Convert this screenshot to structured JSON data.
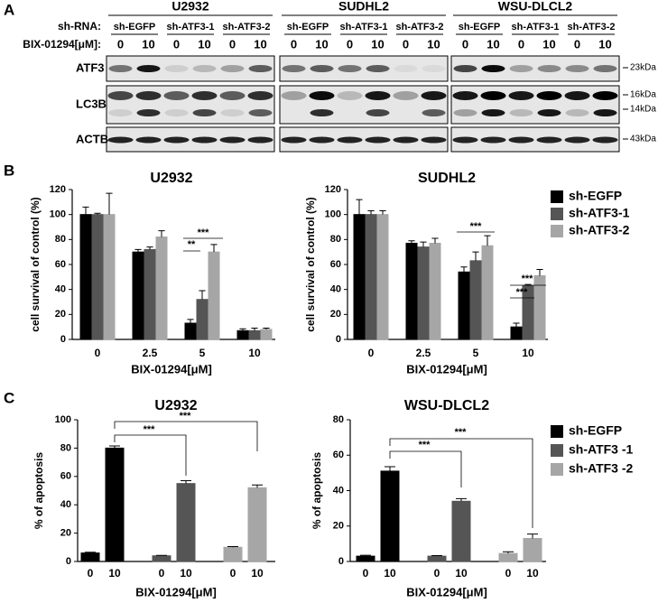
{
  "panel_labels": [
    "A",
    "B",
    "C"
  ],
  "blot": {
    "shrna_label": "sh-RNA:",
    "dose_label": "BIX-01294[μM]:",
    "cell_lines": [
      {
        "name": "U2932",
        "sh_rna": [
          "sh-EGFP",
          "sh-ATF3-1",
          "sh-ATF3-2"
        ],
        "doses": [
          "0",
          "10",
          "0",
          "10",
          "0",
          "10"
        ]
      },
      {
        "name": "SUDHL2",
        "sh_rna": [
          "sh-EGFP",
          "sh-ATF3-1",
          "sh-ATF3-2"
        ],
        "doses": [
          "0",
          "10",
          "0",
          "10",
          "0",
          "10"
        ]
      },
      {
        "name": "WSU-DLCL2",
        "sh_rna": [
          "sh-EGFP",
          "sh-ATF3-1",
          "sh-ATF3-2"
        ],
        "doses": [
          "0",
          "10",
          "0",
          "10",
          "0",
          "10"
        ]
      }
    ],
    "rows": [
      "ATF3",
      "LC3B",
      "ACTB"
    ],
    "markers": [
      "23kDa",
      "16kDa",
      "14kDa",
      "43kDa"
    ]
  },
  "chart_data": [
    {
      "type": "bar",
      "title": "U2932",
      "x_label": "BIX-01294[μM]",
      "y_label": "cell survival of control (%)",
      "categories": [
        "0",
        "2.5",
        "5",
        "10"
      ],
      "series": [
        {
          "color": "#000000",
          "values": [
            100,
            70,
            13,
            7
          ],
          "errors": [
            6,
            2,
            3,
            1.5
          ]
        },
        {
          "color": "#555555",
          "values": [
            100,
            72,
            32,
            7
          ],
          "errors": [
            1,
            2,
            7,
            2
          ]
        },
        {
          "color": "#a6a6a6",
          "values": [
            100,
            82,
            70,
            8
          ],
          "errors": [
            17,
            5,
            6,
            1
          ]
        }
      ],
      "ylim": [
        0,
        120
      ],
      "yticks": [
        0,
        20,
        40,
        60,
        80,
        100,
        120
      ],
      "annotations": [
        "***",
        "**"
      ]
    },
    {
      "type": "bar",
      "title": "SUDHL2",
      "x_label": "BIX-01294[μM]",
      "y_label": "cell survival of control (%)",
      "categories": [
        "0",
        "2.5",
        "5",
        "10"
      ],
      "series": [
        {
          "name": "sh-EGFP",
          "color": "#000000",
          "values": [
            100,
            77,
            54,
            10
          ],
          "errors": [
            12,
            2,
            4,
            3
          ]
        },
        {
          "name": "sh-ATF3-1",
          "color": "#555555",
          "values": [
            100,
            74,
            63,
            43
          ],
          "errors": [
            3,
            4,
            7,
            1
          ]
        },
        {
          "name": "sh-ATF3-2",
          "color": "#a6a6a6",
          "values": [
            100,
            77,
            75,
            51
          ],
          "errors": [
            3,
            4,
            8,
            5
          ]
        }
      ],
      "ylim": [
        0,
        120
      ],
      "yticks": [
        0,
        20,
        40,
        60,
        80,
        100,
        120
      ],
      "annotations": [
        "***",
        "***",
        "***"
      ]
    },
    {
      "type": "bar",
      "title": "U2932",
      "x_label": "BIX-01294[μM]",
      "y_label": "% of apoptosis",
      "categories": [
        "0",
        "10"
      ],
      "series": [
        {
          "color": "#000000",
          "values": [
            6,
            80
          ],
          "errors": [
            0.5,
            1.5
          ]
        },
        {
          "color": "#555555",
          "values": [
            4,
            55
          ],
          "errors": [
            0.3,
            2
          ]
        },
        {
          "color": "#a6a6a6",
          "values": [
            10,
            52
          ],
          "errors": [
            0.5,
            2
          ]
        }
      ],
      "ylim": [
        0,
        100
      ],
      "yticks": [
        0,
        20,
        40,
        60,
        80,
        100
      ],
      "annotations": [
        "***",
        "***"
      ]
    },
    {
      "type": "bar",
      "title": "WSU-DLCL2",
      "x_label": "BIX-01294[μM]",
      "y_label": "% of apoptosis",
      "categories": [
        "0",
        "10"
      ],
      "series": [
        {
          "name": "sh-EGFP",
          "color": "#000000",
          "values": [
            3,
            51
          ],
          "errors": [
            0.5,
            2.5
          ]
        },
        {
          "name": "sh-ATF3 -1",
          "color": "#555555",
          "values": [
            3,
            34
          ],
          "errors": [
            0.3,
            1.5
          ]
        },
        {
          "name": "sh-ATF3 -2",
          "color": "#a6a6a6",
          "values": [
            4.5,
            13
          ],
          "errors": [
            1,
            2.5
          ]
        }
      ],
      "ylim": [
        0,
        80
      ],
      "yticks": [
        0,
        20,
        40,
        60,
        80
      ],
      "annotations": [
        "***",
        "***"
      ]
    }
  ]
}
